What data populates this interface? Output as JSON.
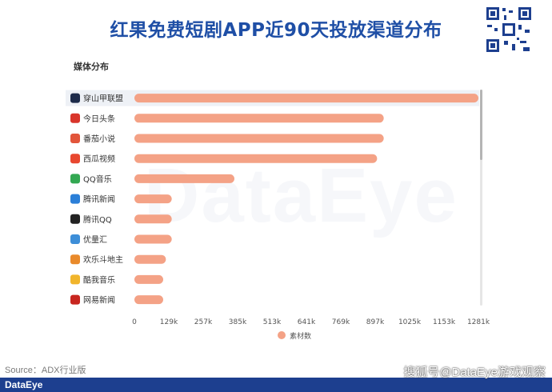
{
  "title": "红果免费短剧APP近90天投放渠道分布",
  "section_title": "媒体分布",
  "source": "Source：ADX行业版",
  "footer_logo": "DataEye",
  "watermark": "搜狐号@DataEye游戏观察",
  "bg_watermark": "DataEye",
  "colors": {
    "bar": "#f4a286",
    "title": "#1f4fa6",
    "footer": "#1d3f8f",
    "scrollbar": "#b5b5b5"
  },
  "chart_data": {
    "type": "bar",
    "orientation": "horizontal",
    "categories": [
      "穿山甲联盟",
      "今日头条",
      "番茄小说",
      "西瓜视频",
      "QQ音乐",
      "腾讯新闻",
      "腾讯QQ",
      "优量汇",
      "欢乐斗地主",
      "酷我音乐",
      "网易新闻"
    ],
    "category_icons": [
      "cloud-icon",
      "toutiao-icon",
      "tomato-icon",
      "watermelon-icon",
      "music-icon",
      "news-icon",
      "penguin-icon",
      "youlianghui-icon",
      "doudizhu-icon",
      "kuwo-icon",
      "netease-news-icon"
    ],
    "series": [
      {
        "name": "素材数",
        "values": [
          1290000,
          935000,
          935000,
          910000,
          375000,
          140000,
          140000,
          140000,
          118000,
          108000,
          108000
        ]
      }
    ],
    "xticks": [
      "0",
      "129k",
      "257k",
      "385k",
      "513k",
      "641k",
      "769k",
      "897k",
      "1025k",
      "1153k",
      "1281k"
    ],
    "xlim": [
      0,
      1290000
    ],
    "legend_position": "bottom",
    "grid": false
  }
}
